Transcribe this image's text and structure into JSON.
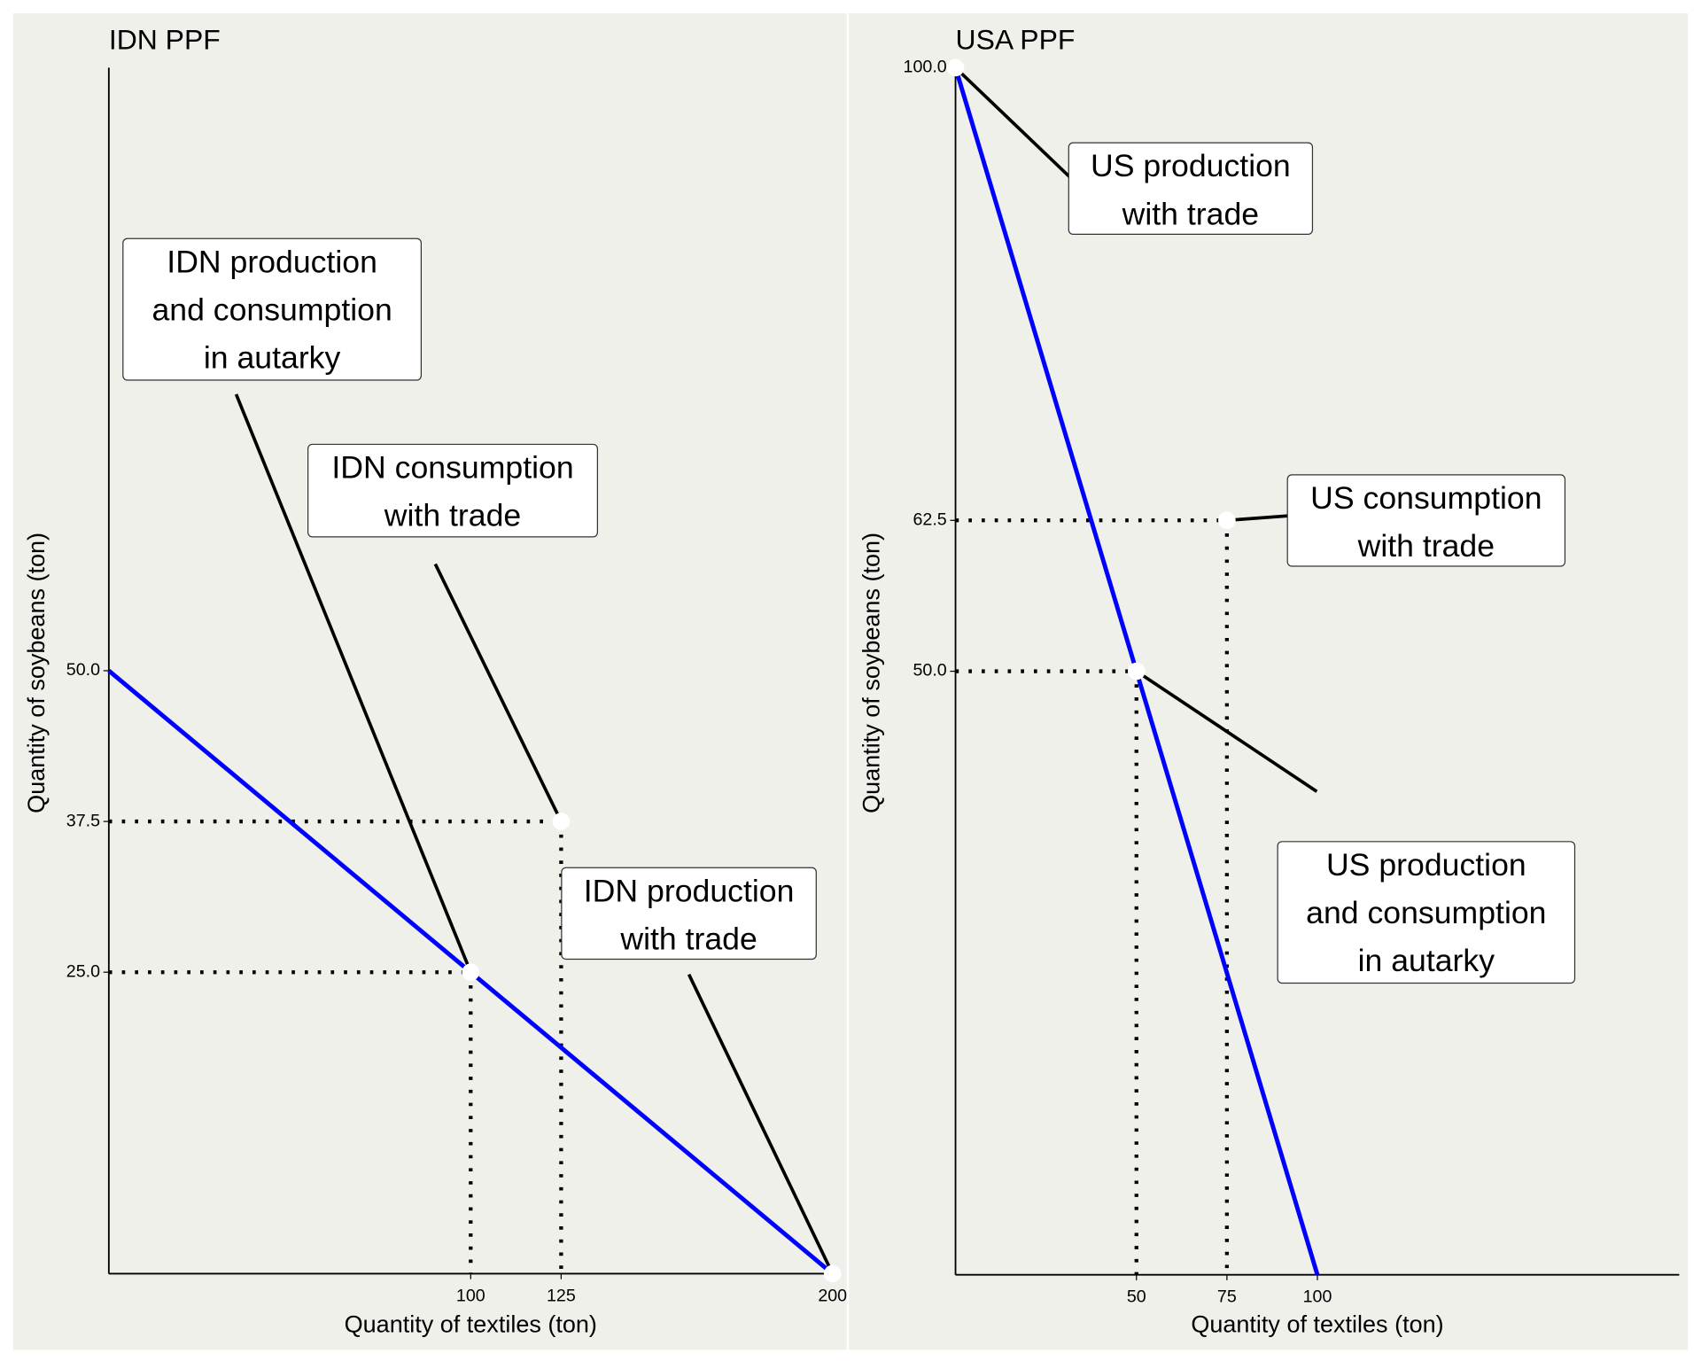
{
  "chart_data": [
    {
      "type": "line",
      "title": "IDN PPF",
      "x_label": "Quantity of textiles (ton)",
      "y_label": "Quantity of soybeans (ton)",
      "x": [
        0,
        200
      ],
      "values": [
        50,
        0
      ],
      "color": "#0000ff",
      "xlim": [
        0,
        200
      ],
      "ylim": [
        0,
        100
      ],
      "xticks": [
        100,
        125,
        200
      ],
      "yticks": [
        {
          "value": 25,
          "label": "25.0"
        },
        37.5,
        {
          "value": 50,
          "label": "50.0"
        }
      ],
      "points": [
        {
          "x": 100,
          "y": 25,
          "label": "IDN production\nand consumption\nin autarky"
        },
        {
          "x": 125,
          "y": 37.5,
          "label": "IDN consumption\nwith trade"
        },
        {
          "x": 200,
          "y": 0,
          "label": "IDN production\nwith trade"
        }
      ]
    },
    {
      "type": "line",
      "title": "USA PPF",
      "x_label": "Quantity of textiles (ton)",
      "y_label": "Quantity of soybeans (ton)",
      "x": [
        0,
        100
      ],
      "values": [
        100,
        0
      ],
      "color": "#0000ff",
      "xlim": [
        0,
        200
      ],
      "ylim": [
        0,
        100
      ],
      "xticks": [
        50,
        75,
        100
      ],
      "yticks": [
        {
          "value": 50,
          "label": "50.0"
        },
        62.5,
        {
          "value": 100,
          "label": "100.0"
        }
      ],
      "points": [
        {
          "x": 50,
          "y": 50,
          "label": "US production\nand consumption\nin autarky"
        },
        {
          "x": 75,
          "y": 62.5,
          "label": "US consumption\nwith trade"
        },
        {
          "x": 0,
          "y": 100,
          "label": "US production\nwith trade"
        }
      ]
    }
  ]
}
